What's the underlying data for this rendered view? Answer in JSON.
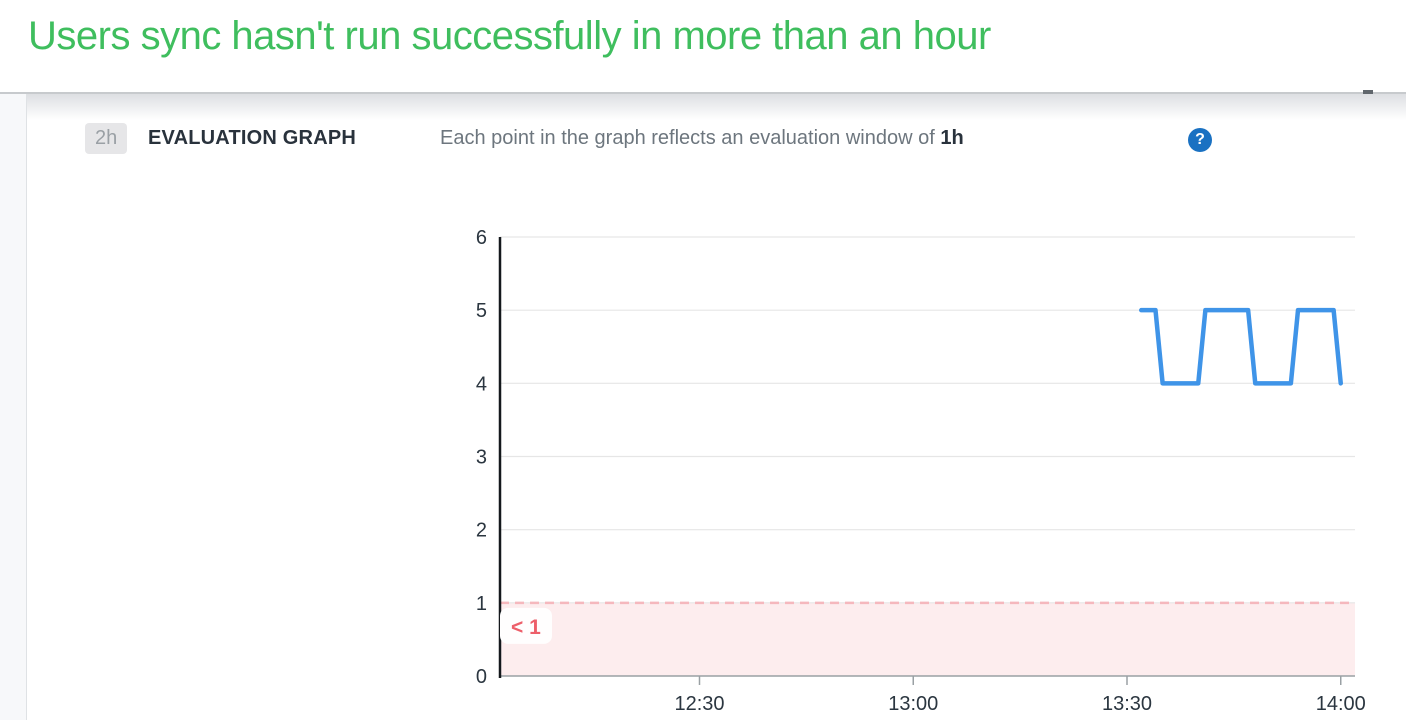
{
  "page": {
    "title": "Users sync hasn't run successfully in more than an hour"
  },
  "evaluation_header": {
    "window_badge": "2h",
    "section_label": "EVALUATION GRAPH",
    "description_prefix": "Each point in the graph reflects an evaluation window of",
    "description_emphasis": "1h",
    "help_icon_glyph": "?"
  },
  "chart_data": {
    "type": "line",
    "title": "",
    "xlabel": "",
    "ylabel": "",
    "grid": "horizontal",
    "legend": "none",
    "x_axis": {
      "start": "12:02",
      "end": "14:02",
      "tick_labels": [
        "12:30",
        "13:00",
        "13:30",
        "14:00"
      ]
    },
    "y_axis": {
      "min": 0,
      "max": 6,
      "tick_labels": [
        0,
        1,
        2,
        3,
        4,
        5,
        6
      ]
    },
    "threshold": {
      "operator": "<",
      "value": 1,
      "label": "< 1",
      "region": "below"
    },
    "series": [
      {
        "name": "evaluation-points",
        "color": "#3f94e8",
        "points": [
          {
            "time": "13:32",
            "value": 5
          },
          {
            "time": "13:34",
            "value": 5
          },
          {
            "time": "13:35",
            "value": 4
          },
          {
            "time": "13:40",
            "value": 4
          },
          {
            "time": "13:41",
            "value": 5
          },
          {
            "time": "13:47",
            "value": 5
          },
          {
            "time": "13:48",
            "value": 4
          },
          {
            "time": "13:53",
            "value": 4
          },
          {
            "time": "13:54",
            "value": 5
          },
          {
            "time": "13:59",
            "value": 5
          },
          {
            "time": "14:00",
            "value": 4
          }
        ]
      }
    ]
  },
  "colors": {
    "title_green": "#3fbe5e",
    "line_blue": "#3f94e8",
    "threshold_text_red": "#ed5f6a",
    "threshold_dash_pink": "#f5b8bd",
    "threshold_fill_pink": "#fdedee",
    "threshold_label_bg": "#fffefe",
    "help_icon_blue": "#1a71c2",
    "axis_dark": "#14181c",
    "axis_gray": "#9aa0a4",
    "gridline_gray": "#e6e6e6",
    "text_dark": "#2b3640",
    "text_gray": "#6d767e",
    "badge_bg": "#e6e6e8",
    "badge_text": "#9aa0a5"
  }
}
